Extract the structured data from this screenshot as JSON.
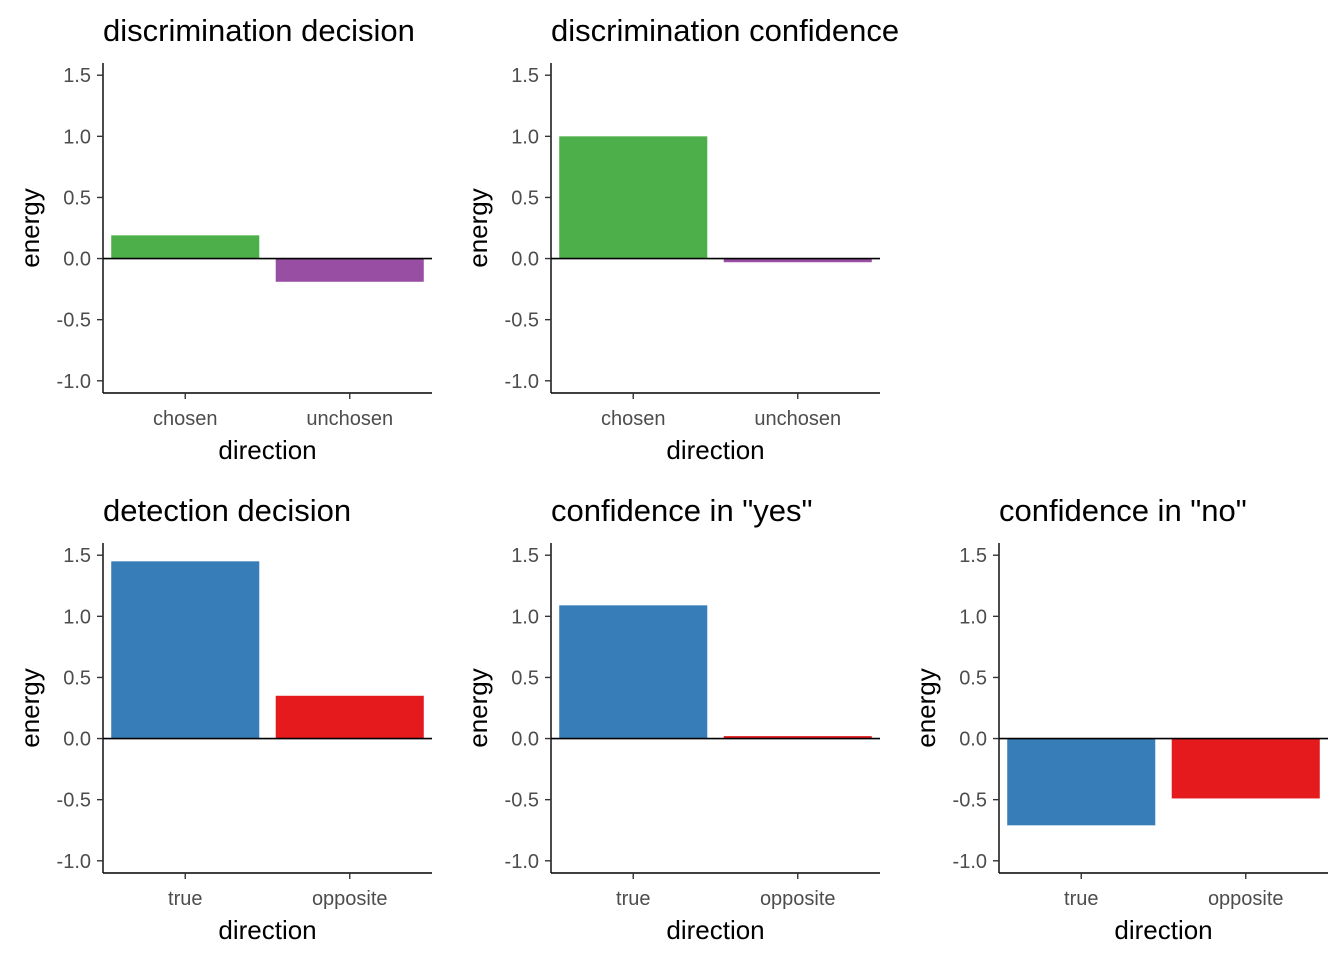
{
  "chart_data": [
    {
      "type": "bar",
      "title": "discrimination decision",
      "xlabel": "direction",
      "ylabel": "energy",
      "ylim": [
        -1.1,
        1.6
      ],
      "yticks": [
        -1.0,
        -0.5,
        0.0,
        0.5,
        1.0,
        1.5
      ],
      "ytick_labels": [
        "-1.0",
        "-0.5",
        "0.0",
        "0.5",
        "1.0",
        "1.5"
      ],
      "categories": [
        "chosen",
        "unchosen"
      ],
      "values": [
        0.19,
        -0.19
      ],
      "colors": [
        "#4DAF4A",
        "#984EA3"
      ]
    },
    {
      "type": "bar",
      "title": "discrimination confidence",
      "xlabel": "direction",
      "ylabel": "energy",
      "ylim": [
        -1.1,
        1.6
      ],
      "yticks": [
        -1.0,
        -0.5,
        0.0,
        0.5,
        1.0,
        1.5
      ],
      "ytick_labels": [
        "-1.0",
        "-0.5",
        "0.0",
        "0.5",
        "1.0",
        "1.5"
      ],
      "categories": [
        "chosen",
        "unchosen"
      ],
      "values": [
        1.0,
        -0.03
      ],
      "colors": [
        "#4DAF4A",
        "#984EA3"
      ]
    },
    {
      "type": "bar",
      "title": "detection decision",
      "xlabel": "direction",
      "ylabel": "energy",
      "ylim": [
        -1.1,
        1.6
      ],
      "yticks": [
        -1.0,
        -0.5,
        0.0,
        0.5,
        1.0,
        1.5
      ],
      "ytick_labels": [
        "-1.0",
        "-0.5",
        "0.0",
        "0.5",
        "1.0",
        "1.5"
      ],
      "categories": [
        "true",
        "opposite"
      ],
      "values": [
        1.45,
        0.35
      ],
      "colors": [
        "#377EB8",
        "#E41A1C"
      ]
    },
    {
      "type": "bar",
      "title": "confidence in \"yes\"",
      "xlabel": "direction",
      "ylabel": "energy",
      "ylim": [
        -1.1,
        1.6
      ],
      "yticks": [
        -1.0,
        -0.5,
        0.0,
        0.5,
        1.0,
        1.5
      ],
      "ytick_labels": [
        "-1.0",
        "-0.5",
        "0.0",
        "0.5",
        "1.0",
        "1.5"
      ],
      "categories": [
        "true",
        "opposite"
      ],
      "values": [
        1.09,
        0.02
      ],
      "colors": [
        "#377EB8",
        "#E41A1C"
      ]
    },
    {
      "type": "bar",
      "title": "confidence in \"no\"",
      "xlabel": "direction",
      "ylabel": "energy",
      "ylim": [
        -1.1,
        1.6
      ],
      "yticks": [
        -1.0,
        -0.5,
        0.0,
        0.5,
        1.0,
        1.5
      ],
      "ytick_labels": [
        "-1.0",
        "-0.5",
        "0.0",
        "0.5",
        "1.0",
        "1.5"
      ],
      "categories": [
        "true",
        "opposite"
      ],
      "values": [
        -0.71,
        -0.49
      ],
      "colors": [
        "#377EB8",
        "#E41A1C"
      ]
    }
  ]
}
